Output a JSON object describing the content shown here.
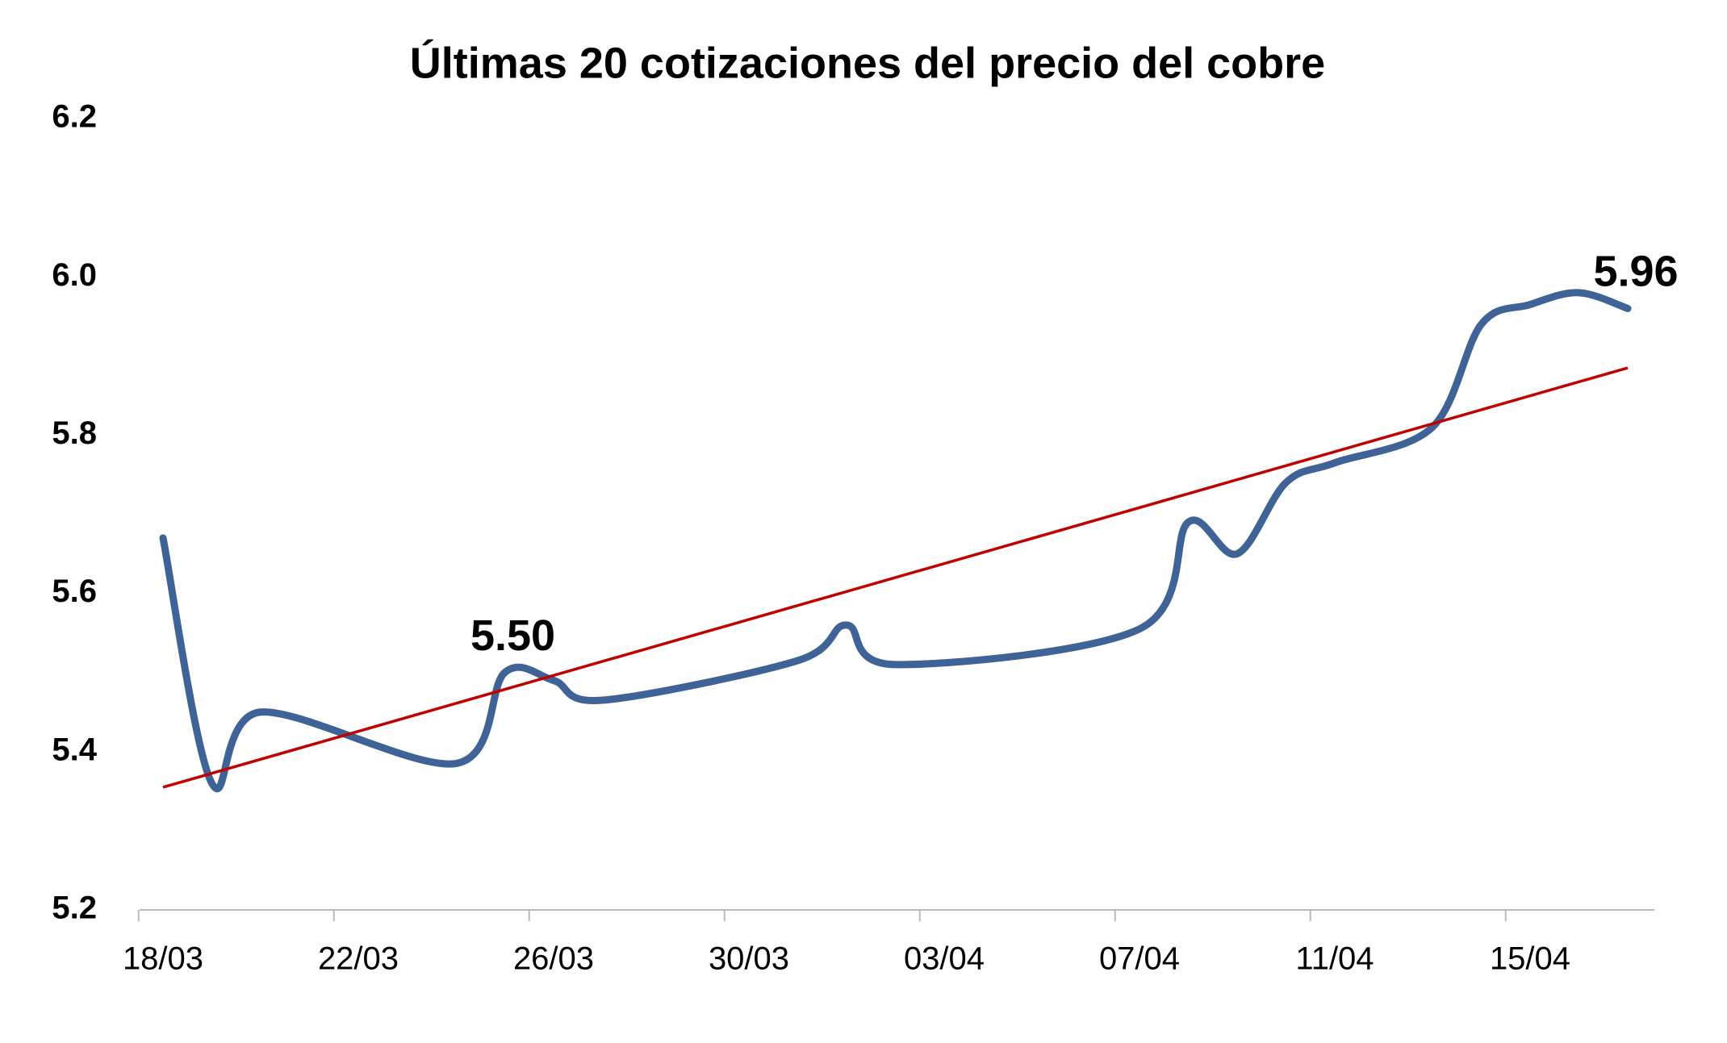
{
  "chart_data": {
    "type": "line",
    "title": "Últimas 20 cotizaciones del precio del cobre",
    "x": [
      "18/03",
      "19/03",
      "20/03",
      "24/03",
      "25/03",
      "26/03",
      "27/03",
      "31/03",
      "01/04",
      "02/04",
      "07/04",
      "08/04",
      "09/04",
      "10/04",
      "11/04",
      "13/04",
      "14/04",
      "15/04",
      "16/04",
      "17/04"
    ],
    "series": [
      {
        "color": "#3f6396",
        "values": [
          5.67,
          5.36,
          5.45,
          5.385,
          5.5,
          5.49,
          5.465,
          5.515,
          5.56,
          5.51,
          5.555,
          5.69,
          5.65,
          5.74,
          5.765,
          5.81,
          5.94,
          5.965,
          5.98,
          5.96
        ],
        "value_labels": [
          null,
          null,
          null,
          null,
          "5.50",
          null,
          null,
          null,
          null,
          null,
          null,
          null,
          null,
          null,
          null,
          null,
          null,
          null,
          null,
          "5.96"
        ]
      }
    ],
    "trendline": {
      "color": "#c00000",
      "x": [
        "18/03",
        "17/04"
      ],
      "values": [
        5.355,
        5.885
      ]
    },
    "xticks": [
      "18/03",
      "22/03",
      "26/03",
      "30/03",
      "03/04",
      "07/04",
      "11/04",
      "15/04"
    ],
    "ylim": [
      5.2,
      6.2
    ],
    "yticks": [
      5.2,
      5.4,
      5.6,
      5.8,
      {
        "value": 6,
        "label": "6.0"
      },
      6.2
    ],
    "grid": false
  }
}
